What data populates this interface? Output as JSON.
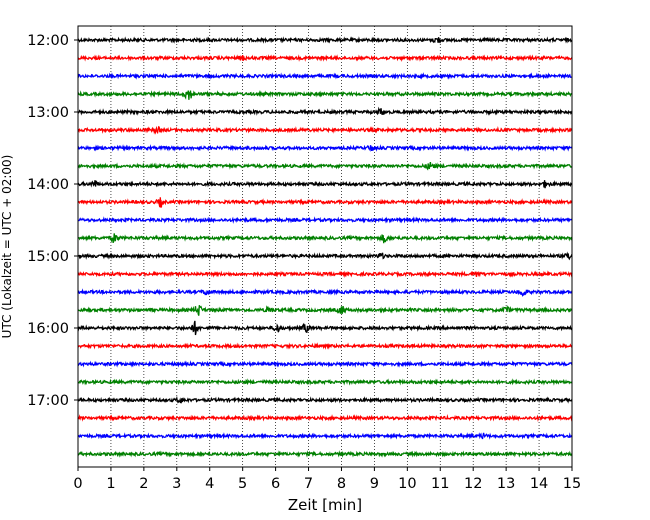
{
  "chart_data": {
    "type": "line",
    "title": "",
    "xlabel": "Zeit  [min]",
    "ylabel": "UTC (Lokalzeit = UTC + 02:00)",
    "xlim": [
      0,
      15
    ],
    "x_ticks": [
      0,
      1,
      2,
      3,
      4,
      5,
      6,
      7,
      8,
      9,
      10,
      11,
      12,
      13,
      14,
      15
    ],
    "y_tick_labels": [
      "12:00",
      "13:00",
      "14:00",
      "15:00",
      "16:00",
      "17:00"
    ],
    "grid": "vertical dotted",
    "legend": "none",
    "trace_interval_minutes": 15,
    "color_cycle": [
      "#000000",
      "#ff0000",
      "#0000ff",
      "#008000"
    ],
    "series": [
      {
        "start": "12:00",
        "color": "#000000",
        "events": [
          {
            "t": 10.9,
            "amp": 3
          }
        ]
      },
      {
        "start": "12:15",
        "color": "#ff0000",
        "events": [
          {
            "t": 5.0,
            "amp": 2
          }
        ]
      },
      {
        "start": "12:30",
        "color": "#0000ff",
        "events": []
      },
      {
        "start": "12:45",
        "color": "#008000",
        "events": [
          {
            "t": 3.35,
            "amp": 7
          }
        ]
      },
      {
        "start": "13:00",
        "color": "#000000",
        "events": [
          {
            "t": 9.2,
            "amp": 3
          }
        ]
      },
      {
        "start": "13:15",
        "color": "#ff0000",
        "events": [
          {
            "t": 2.4,
            "amp": 2.5
          }
        ]
      },
      {
        "start": "13:30",
        "color": "#0000ff",
        "events": [
          {
            "t": 8.9,
            "amp": 2.5
          }
        ]
      },
      {
        "start": "13:45",
        "color": "#008000",
        "events": [
          {
            "t": 10.7,
            "amp": 4
          }
        ]
      },
      {
        "start": "14:00",
        "color": "#000000",
        "events": [
          {
            "t": 0.5,
            "amp": 3
          },
          {
            "t": 14.2,
            "amp": 3
          }
        ]
      },
      {
        "start": "14:15",
        "color": "#ff0000",
        "events": [
          {
            "t": 2.5,
            "amp": 4
          }
        ]
      },
      {
        "start": "14:30",
        "color": "#0000ff",
        "events": []
      },
      {
        "start": "14:45",
        "color": "#008000",
        "events": [
          {
            "t": 1.1,
            "amp": 4
          },
          {
            "t": 9.3,
            "amp": 4
          }
        ]
      },
      {
        "start": "15:00",
        "color": "#000000",
        "events": [
          {
            "t": 9.2,
            "amp": 2.5
          },
          {
            "t": 14.9,
            "amp": 3
          }
        ]
      },
      {
        "start": "15:15",
        "color": "#ff0000",
        "events": [
          {
            "t": 12.1,
            "amp": 2
          }
        ]
      },
      {
        "start": "15:30",
        "color": "#0000ff",
        "events": [
          {
            "t": 3.9,
            "amp": 3
          },
          {
            "t": 13.5,
            "amp": 4
          }
        ]
      },
      {
        "start": "15:45",
        "color": "#008000",
        "events": [
          {
            "t": 3.65,
            "amp": 6
          },
          {
            "t": 5.8,
            "amp": 3
          },
          {
            "t": 8.0,
            "amp": 4
          },
          {
            "t": 13.0,
            "amp": 3
          }
        ]
      },
      {
        "start": "16:00",
        "color": "#000000",
        "events": [
          {
            "t": 3.55,
            "amp": 6
          },
          {
            "t": 6.05,
            "amp": 4
          },
          {
            "t": 6.9,
            "amp": 4
          }
        ]
      },
      {
        "start": "16:15",
        "color": "#ff0000",
        "events": []
      },
      {
        "start": "16:30",
        "color": "#0000ff",
        "events": []
      },
      {
        "start": "16:45",
        "color": "#008000",
        "events": []
      },
      {
        "start": "17:00",
        "color": "#000000",
        "events": [
          {
            "t": 3.1,
            "amp": 2
          }
        ]
      },
      {
        "start": "17:15",
        "color": "#ff0000",
        "events": []
      },
      {
        "start": "17:30",
        "color": "#0000ff",
        "events": [
          {
            "t": 12.3,
            "amp": 2
          }
        ]
      },
      {
        "start": "17:45",
        "color": "#008000",
        "events": []
      }
    ]
  }
}
